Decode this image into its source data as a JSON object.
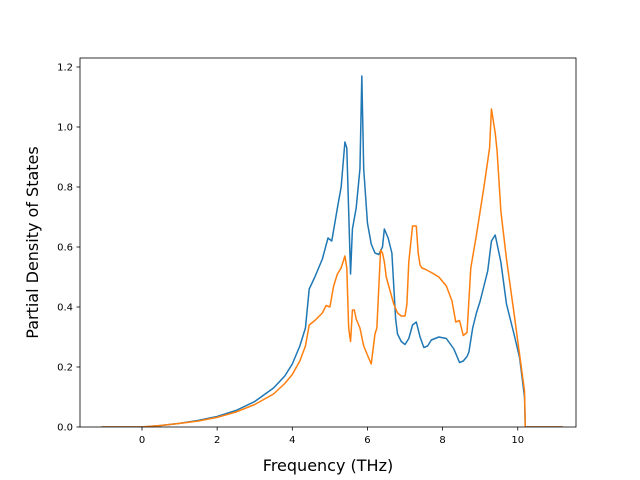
{
  "chart_data": {
    "type": "line",
    "title": "",
    "xlabel": "Frequency (THz)",
    "ylabel": "Partial Density of States",
    "xlim": [
      -1.65,
      11.55
    ],
    "ylim": [
      0.0,
      1.23
    ],
    "xticks": [
      0,
      2,
      4,
      6,
      8,
      10
    ],
    "xtick_labels": [
      "0",
      "2",
      "4",
      "6",
      "8",
      "10"
    ],
    "yticks": [
      0.0,
      0.2,
      0.4,
      0.6,
      0.8,
      1.0,
      1.2
    ],
    "ytick_labels": [
      "0.0",
      "0.2",
      "0.4",
      "0.6",
      "0.8",
      "1.0",
      "1.2"
    ],
    "grid": false,
    "legend": "none",
    "series": [
      {
        "color": "#1f77b4",
        "x": [
          -1.08,
          0.0,
          0.5,
          1.0,
          1.5,
          2.0,
          2.5,
          3.0,
          3.5,
          3.8,
          4.0,
          4.2,
          4.35,
          4.45,
          4.6,
          4.8,
          4.95,
          5.05,
          5.2,
          5.3,
          5.4,
          5.45,
          5.55,
          5.6,
          5.7,
          5.8,
          5.85,
          5.9,
          6.0,
          6.1,
          6.2,
          6.3,
          6.4,
          6.45,
          6.55,
          6.65,
          6.75,
          6.8,
          6.9,
          7.0,
          7.1,
          7.2,
          7.3,
          7.4,
          7.5,
          7.6,
          7.7,
          7.9,
          8.1,
          8.3,
          8.45,
          8.55,
          8.65,
          8.7,
          8.8,
          8.9,
          9.0,
          9.1,
          9.2,
          9.3,
          9.4,
          9.45,
          9.55,
          9.7,
          9.9,
          10.05,
          10.18,
          10.2,
          10.6,
          11.2
        ],
        "y": [
          0.0,
          0.0,
          0.005,
          0.012,
          0.022,
          0.035,
          0.055,
          0.085,
          0.13,
          0.17,
          0.21,
          0.27,
          0.33,
          0.46,
          0.5,
          0.56,
          0.63,
          0.62,
          0.73,
          0.8,
          0.95,
          0.93,
          0.51,
          0.66,
          0.73,
          0.86,
          1.17,
          0.86,
          0.68,
          0.61,
          0.58,
          0.575,
          0.6,
          0.66,
          0.63,
          0.58,
          0.36,
          0.31,
          0.285,
          0.275,
          0.295,
          0.34,
          0.35,
          0.3,
          0.265,
          0.27,
          0.29,
          0.3,
          0.295,
          0.26,
          0.215,
          0.22,
          0.235,
          0.25,
          0.33,
          0.38,
          0.42,
          0.47,
          0.52,
          0.62,
          0.64,
          0.61,
          0.55,
          0.41,
          0.31,
          0.23,
          0.1,
          0.0,
          0.0,
          0.0
        ]
      },
      {
        "color": "#ff7f0e",
        "x": [
          -1.08,
          0.0,
          0.5,
          1.0,
          1.5,
          2.0,
          2.5,
          3.0,
          3.5,
          3.8,
          4.0,
          4.2,
          4.35,
          4.45,
          4.6,
          4.8,
          4.9,
          5.0,
          5.1,
          5.2,
          5.3,
          5.4,
          5.45,
          5.5,
          5.55,
          5.6,
          5.65,
          5.7,
          5.8,
          5.9,
          6.0,
          6.1,
          6.2,
          6.25,
          6.35,
          6.4,
          6.45,
          6.5,
          6.6,
          6.7,
          6.8,
          6.9,
          7.0,
          7.05,
          7.1,
          7.2,
          7.3,
          7.35,
          7.4,
          7.45,
          7.55,
          7.7,
          7.9,
          8.1,
          8.25,
          8.35,
          8.45,
          8.55,
          8.65,
          8.75,
          8.9,
          9.1,
          9.25,
          9.3,
          9.4,
          9.45,
          9.55,
          9.7,
          9.9,
          10.05,
          10.18,
          10.2,
          10.6,
          11.2
        ],
        "y": [
          0.0,
          0.0,
          0.005,
          0.012,
          0.02,
          0.032,
          0.05,
          0.075,
          0.11,
          0.145,
          0.175,
          0.22,
          0.27,
          0.34,
          0.355,
          0.38,
          0.405,
          0.4,
          0.47,
          0.51,
          0.53,
          0.57,
          0.53,
          0.33,
          0.285,
          0.39,
          0.39,
          0.36,
          0.33,
          0.27,
          0.24,
          0.21,
          0.31,
          0.33,
          0.59,
          0.58,
          0.55,
          0.5,
          0.455,
          0.41,
          0.38,
          0.37,
          0.37,
          0.41,
          0.55,
          0.67,
          0.67,
          0.58,
          0.54,
          0.53,
          0.525,
          0.515,
          0.5,
          0.47,
          0.42,
          0.35,
          0.355,
          0.305,
          0.315,
          0.53,
          0.64,
          0.8,
          0.93,
          1.06,
          0.98,
          0.92,
          0.72,
          0.56,
          0.38,
          0.24,
          0.12,
          0.0,
          0.0,
          0.0
        ]
      }
    ]
  }
}
